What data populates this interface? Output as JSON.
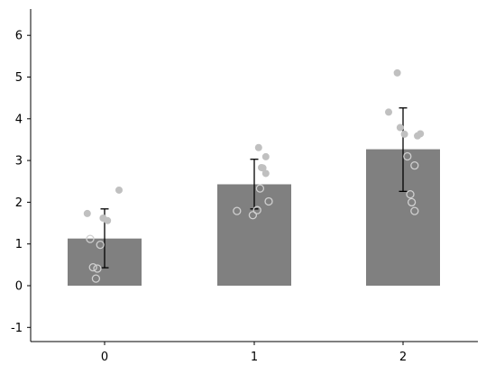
{
  "chart_data": {
    "type": "bar",
    "categories": [
      "0",
      "1",
      "2"
    ],
    "values": [
      1.13,
      2.43,
      3.27
    ],
    "error": [
      [
        0.43,
        1.84
      ],
      [
        1.84,
        3.03
      ],
      [
        2.26,
        4.26
      ]
    ],
    "points": [
      [
        {
          "y": 2.29,
          "filled": true
        },
        {
          "y": 1.56,
          "filled": true
        },
        {
          "y": 1.73,
          "filled": true
        },
        {
          "y": 1.62,
          "filled": true
        },
        {
          "y": 1.12,
          "filled": false
        },
        {
          "y": 0.98,
          "filled": false
        },
        {
          "y": 0.44,
          "filled": false
        },
        {
          "y": 0.41,
          "filled": false
        },
        {
          "y": 0.17,
          "filled": false
        }
      ],
      [
        {
          "y": 3.31,
          "filled": true
        },
        {
          "y": 3.09,
          "filled": true
        },
        {
          "y": 2.83,
          "filled": true
        },
        {
          "y": 2.82,
          "filled": true
        },
        {
          "y": 2.69,
          "filled": true
        },
        {
          "y": 2.33,
          "filled": false
        },
        {
          "y": 2.02,
          "filled": false
        },
        {
          "y": 1.81,
          "filled": false
        },
        {
          "y": 1.79,
          "filled": false
        },
        {
          "y": 1.69,
          "filled": false
        }
      ],
      [
        {
          "y": 5.1,
          "filled": true
        },
        {
          "y": 4.16,
          "filled": true
        },
        {
          "y": 3.79,
          "filled": true
        },
        {
          "y": 3.64,
          "filled": true
        },
        {
          "y": 3.63,
          "filled": true
        },
        {
          "y": 3.59,
          "filled": true
        },
        {
          "y": 3.1,
          "filled": false
        },
        {
          "y": 2.88,
          "filled": false
        },
        {
          "y": 2.19,
          "filled": false
        },
        {
          "y": 2.0,
          "filled": false
        },
        {
          "y": 1.79,
          "filled": false
        }
      ]
    ],
    "yticks": [
      -1,
      0,
      1,
      2,
      3,
      4,
      5,
      6
    ],
    "ylim": [
      -1.35,
      6.6
    ],
    "title": "",
    "xlabel": "",
    "ylabel": "",
    "grid": false,
    "colors": {
      "bar": "#808080",
      "error": "#000000",
      "point_filled": "#c0c0c0",
      "point_open_stroke": "#d0d0d0"
    }
  }
}
